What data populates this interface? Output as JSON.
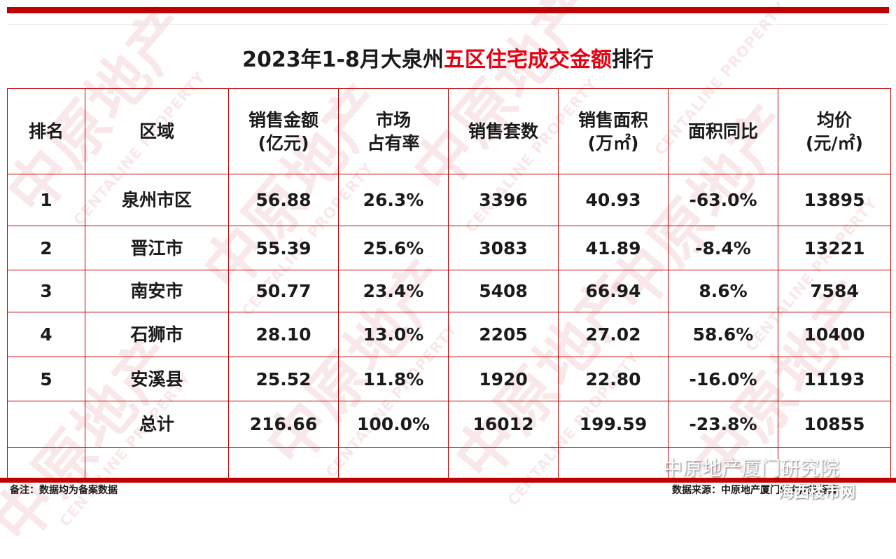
{
  "title": {
    "prefix": "2023年1-8月大泉州",
    "highlight": "五区住宅成交金额",
    "suffix": "排行"
  },
  "table": {
    "headers": [
      {
        "line1": "排名",
        "line2": ""
      },
      {
        "line1": "区域",
        "line2": ""
      },
      {
        "line1": "销售金额",
        "line2": "(亿元)"
      },
      {
        "line1": "市场",
        "line2": "占有率"
      },
      {
        "line1": "销售套数",
        "line2": ""
      },
      {
        "line1": "销售面积",
        "line2": "(万㎡)"
      },
      {
        "line1": "面积同比",
        "line2": ""
      },
      {
        "line1": "均价",
        "line2": "(元/㎡)"
      }
    ],
    "rows": [
      [
        "1",
        "泉州市区",
        "56.88",
        "26.3%",
        "3396",
        "40.93",
        "-63.0%",
        "13895"
      ],
      [
        "2",
        "晋江市",
        "55.39",
        "25.6%",
        "3083",
        "41.89",
        "-8.4%",
        "13221"
      ],
      [
        "3",
        "南安市",
        "50.77",
        "23.4%",
        "5408",
        "66.94",
        "8.6%",
        "7584"
      ],
      [
        "4",
        "石狮市",
        "28.10",
        "13.0%",
        "2205",
        "27.02",
        "58.6%",
        "10400"
      ],
      [
        "5",
        "安溪县",
        "25.52",
        "11.8%",
        "1920",
        "22.80",
        "-16.0%",
        "11193"
      ]
    ],
    "total": [
      "",
      "总计",
      "216.66",
      "100.0%",
      "16012",
      "199.59",
      "-23.8%",
      "10855"
    ]
  },
  "footer": {
    "note": "备注：数据均为备案数据",
    "source": "数据来源：中原地产厦门研究院数据库"
  },
  "watermark": {
    "brand": "中原地产",
    "english": "CENTALINE PROPERTY"
  },
  "overlay": {
    "account": "中原地产厦门研究院",
    "stamp": "海西楼市网"
  },
  "colors": {
    "accent": "#c00000",
    "highlight": "#e60012"
  }
}
